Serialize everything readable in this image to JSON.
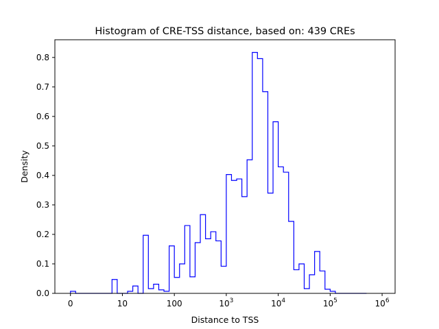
{
  "chart_data": {
    "type": "histogram",
    "title": "Histogram of CRE-TSS distance, based on: 439 CREs",
    "xlabel": "Distance to TSS",
    "ylabel": "Density",
    "x_scale": "symlog",
    "xlim": [
      -0.3,
      6.25
    ],
    "ylim": [
      0,
      0.86
    ],
    "x_ticks": [
      {
        "pos": 0,
        "label": "0"
      },
      {
        "pos": 1,
        "label": "10"
      },
      {
        "pos": 2,
        "label": "100"
      },
      {
        "pos": 3,
        "base": "10",
        "exp": "3"
      },
      {
        "pos": 4,
        "base": "10",
        "exp": "4"
      },
      {
        "pos": 5,
        "base": "10",
        "exp": "5"
      },
      {
        "pos": 6,
        "base": "10",
        "exp": "6"
      }
    ],
    "y_ticks": [
      "0.0",
      "0.1",
      "0.2",
      "0.3",
      "0.4",
      "0.5",
      "0.6",
      "0.7",
      "0.8"
    ],
    "bin_edges": [
      0.0,
      0.1,
      0.2,
      0.3,
      0.4,
      0.5,
      0.6,
      0.7,
      0.8,
      0.9,
      1.0,
      1.1,
      1.2,
      1.3,
      1.4,
      1.5,
      1.6,
      1.7,
      1.8,
      1.9,
      2.0,
      2.1,
      2.2,
      2.3,
      2.4,
      2.5,
      2.6,
      2.7,
      2.8,
      2.9,
      3.0,
      3.1,
      3.2,
      3.3,
      3.4,
      3.5,
      3.6,
      3.7,
      3.8,
      3.9,
      4.0,
      4.1,
      4.2,
      4.3,
      4.4,
      4.5,
      4.6,
      4.7,
      4.8,
      4.9,
      5.0,
      5.1,
      5.2,
      5.3,
      5.4,
      5.5,
      5.6,
      5.7
    ],
    "density": [
      0.007,
      0.0,
      0.0,
      0.0,
      0.0,
      0.0,
      0.0,
      0.0,
      0.047,
      0.0,
      0.0,
      0.007,
      0.025,
      0.0,
      0.197,
      0.016,
      0.031,
      0.012,
      0.007,
      0.161,
      0.054,
      0.1,
      0.23,
      0.056,
      0.172,
      0.267,
      0.185,
      0.209,
      0.178,
      0.092,
      0.403,
      0.383,
      0.388,
      0.328,
      0.453,
      0.817,
      0.796,
      0.684,
      0.34,
      0.582,
      0.429,
      0.411,
      0.244,
      0.08,
      0.1,
      0.016,
      0.063,
      0.142,
      0.076,
      0.014,
      0.007,
      0.0,
      0.0,
      0.0,
      0.0,
      0.0,
      0.0
    ],
    "line_color": "#0000ff"
  }
}
